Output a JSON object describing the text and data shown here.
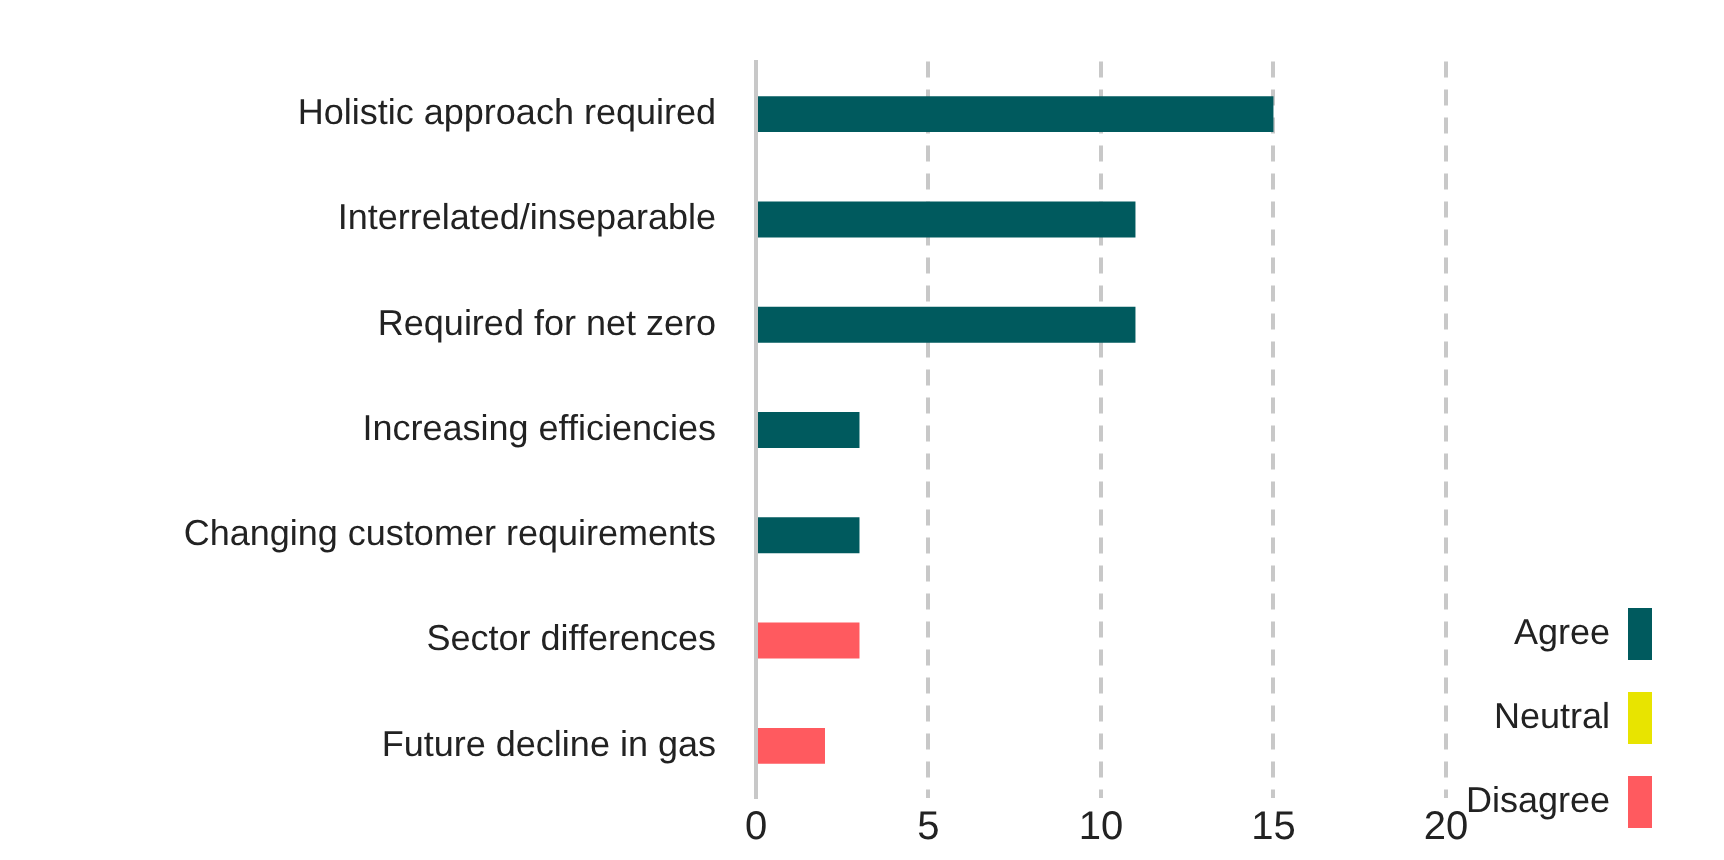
{
  "chart_data": {
    "type": "bar",
    "orientation": "horizontal",
    "stacked": true,
    "categories": [
      "Holistic approach required",
      "Interrelated/inseparable",
      "Required for net zero",
      "Increasing efficiencies",
      "Changing customer requirements",
      "Sector differences",
      "Future decline in gas"
    ],
    "series": [
      {
        "name": "Agree",
        "color": "#005a5e",
        "values": [
          15,
          11,
          11,
          3,
          3,
          null,
          null
        ]
      },
      {
        "name": "Neutral",
        "color": "#e8e400",
        "values": [
          null,
          null,
          null,
          null,
          null,
          null,
          null
        ]
      },
      {
        "name": "Disagree",
        "color": "#ff5a5f",
        "values": [
          null,
          null,
          null,
          null,
          null,
          3,
          2
        ]
      }
    ],
    "xlim": [
      0,
      20
    ],
    "xticks": [
      0,
      5,
      10,
      15,
      20
    ],
    "grid": "x",
    "legend": "bottom right"
  }
}
